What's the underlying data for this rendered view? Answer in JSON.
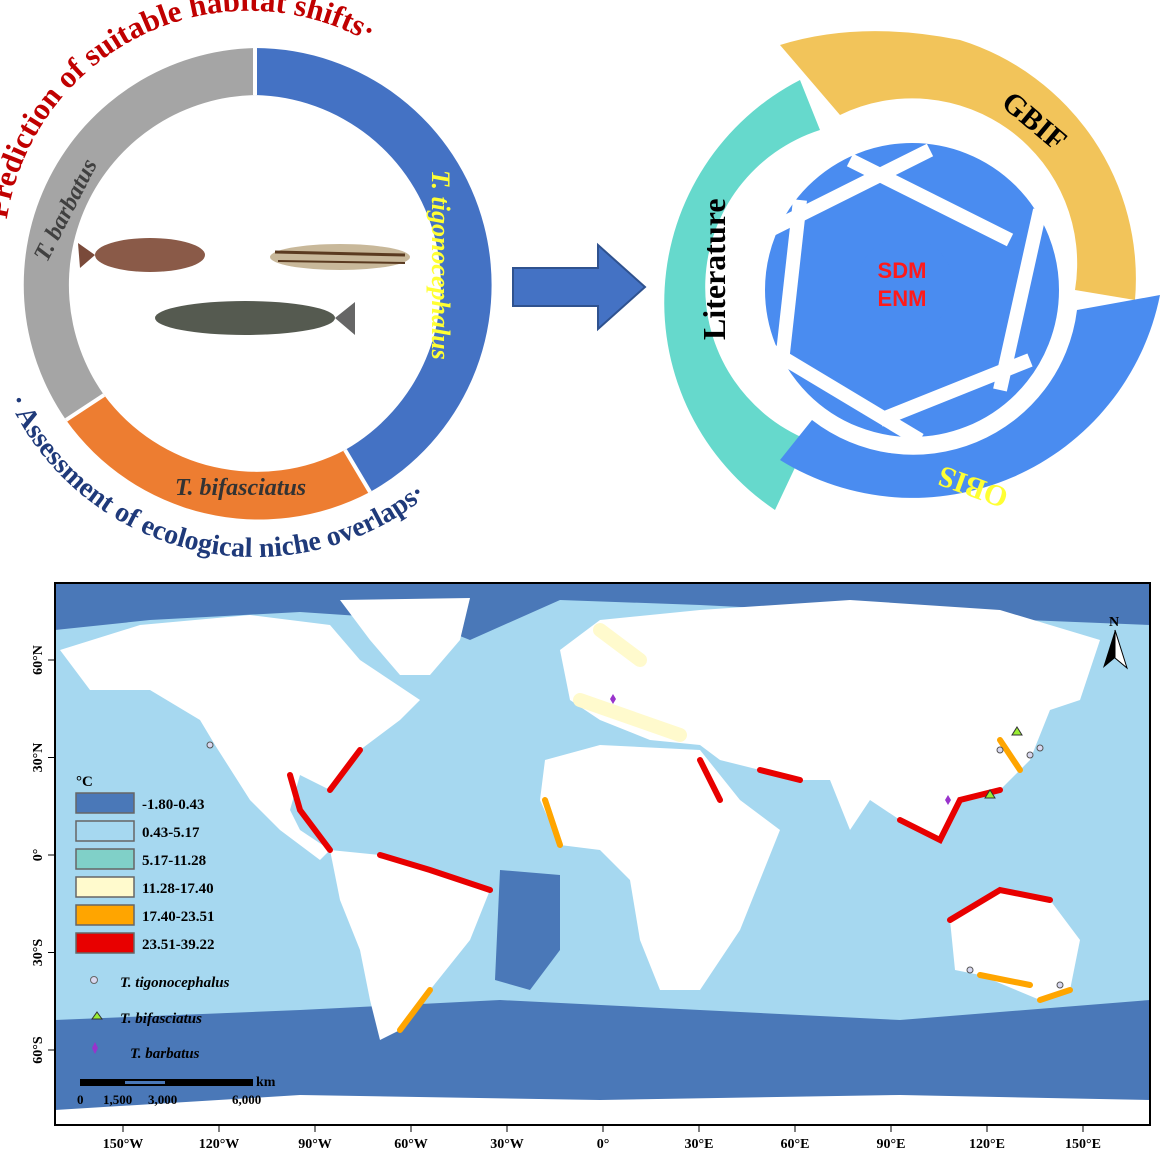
{
  "left_panel": {
    "arc_top_text": "·Prediction of suitable habitat shifts·",
    "arc_bottom_text": "· Assessment of ecological niche overlaps·",
    "segments": [
      {
        "label": "T. tigonocephalus",
        "color": "#4472C4",
        "label_color": "#FFFF33"
      },
      {
        "label": "T. bifasciatus",
        "color": "#ED7D31",
        "label_color": "#333333"
      },
      {
        "label": "T. barbatus",
        "color": "#A5A5A5",
        "label_color": "#404040"
      }
    ]
  },
  "right_panel": {
    "segments": [
      {
        "label": "Literature",
        "color": "#66D9CC"
      },
      {
        "label": "GBIF",
        "color": "#F2C45A"
      },
      {
        "label": "OBIS",
        "color": "#4A8CF0",
        "label_color": "#FFFF33"
      }
    ],
    "center_lines": [
      "SDM",
      "ENM"
    ],
    "center_text_color": "#FF1A1A"
  },
  "map": {
    "north_label": "N",
    "legend": {
      "unit": "°C",
      "classes": [
        {
          "label": "-1.80-0.43",
          "color": "#4A78B8"
        },
        {
          "label": "0.43-5.17",
          "color": "#A6D8F0"
        },
        {
          "label": "5.17-11.28",
          "color": "#80D0C8"
        },
        {
          "label": "11.28-17.40",
          "color": "#FFFACD"
        },
        {
          "label": "17.40-23.51",
          "color": "#FFA500"
        },
        {
          "label": "23.51-39.22",
          "color": "#E80000"
        }
      ],
      "species": [
        {
          "label": "T. tigonocephalus",
          "marker": "circle",
          "color": "#D8D8F0"
        },
        {
          "label": "T. bifasciatus",
          "marker": "triangle",
          "color": "#99EE33"
        },
        {
          "label": "T. barbatus",
          "marker": "diamond",
          "color": "#9933CC"
        }
      ]
    },
    "scale_bar": {
      "unit": "km",
      "ticks": [
        "0",
        "1,500",
        "3,000",
        "6,000"
      ]
    },
    "x_ticks": [
      "150°W",
      "120°W",
      "90°W",
      "60°W",
      "30°W",
      "0°",
      "30°E",
      "60°E",
      "90°E",
      "120°E",
      "150°E"
    ],
    "y_ticks": [
      "60°N",
      "30°N",
      "0°",
      "30°S",
      "60°S"
    ]
  }
}
